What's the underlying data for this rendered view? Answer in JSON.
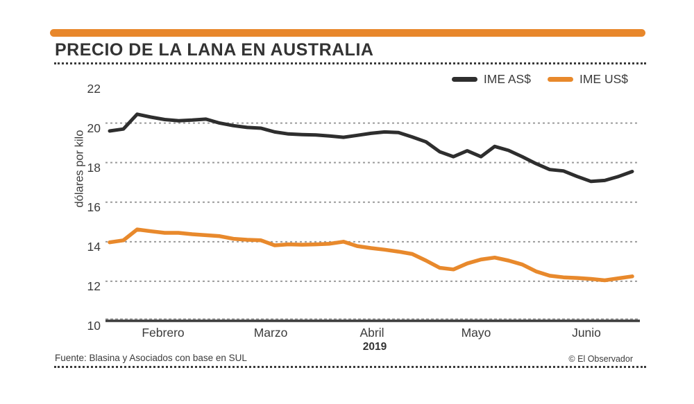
{
  "header": {
    "title": "PRECIO DE LA LANA EN AUSTRALIA"
  },
  "colors": {
    "accent": "#e8872b",
    "series_as": "#2e2e2e",
    "series_us": "#e8892c",
    "grid": "#9b9b9b",
    "axis": "#3a3a3a"
  },
  "chart_data": {
    "type": "line",
    "title": "PRECIO DE LA LANA EN AUSTRALIA",
    "ylabel": "dólares por kilo",
    "xlabel": "",
    "year_label": "2019",
    "x_month_labels": [
      "Febrero",
      "Marzo",
      "Abril",
      "Mayo",
      "Junio"
    ],
    "y_ticks": [
      22,
      20,
      18,
      16,
      14,
      12,
      10
    ],
    "ylim": [
      10,
      22
    ],
    "grid_values": [
      20,
      18,
      16,
      14,
      12
    ],
    "legend_position": "top-right",
    "series": [
      {
        "name": "IME AS$",
        "color": "#2e2e2e",
        "values": [
          19.6,
          19.7,
          20.45,
          20.3,
          20.18,
          20.12,
          20.15,
          20.2,
          20.0,
          19.87,
          19.78,
          19.74,
          19.55,
          19.45,
          19.42,
          19.4,
          19.35,
          19.28,
          19.38,
          19.48,
          19.55,
          19.52,
          19.3,
          19.05,
          18.55,
          18.3,
          18.6,
          18.3,
          18.82,
          18.62,
          18.3,
          17.95,
          17.65,
          17.58,
          17.3,
          17.05,
          17.1,
          17.3,
          17.55
        ]
      },
      {
        "name": "IME US$",
        "color": "#e8892c",
        "values": [
          13.97,
          14.07,
          14.62,
          14.53,
          14.45,
          14.45,
          14.38,
          14.33,
          14.28,
          14.15,
          14.1,
          14.07,
          13.82,
          13.87,
          13.85,
          13.87,
          13.9,
          14.0,
          13.78,
          13.68,
          13.6,
          13.5,
          13.38,
          13.05,
          12.68,
          12.6,
          12.9,
          13.1,
          13.2,
          13.05,
          12.85,
          12.5,
          12.28,
          12.2,
          12.17,
          12.12,
          12.05,
          12.15,
          12.25
        ]
      }
    ]
  },
  "footer": {
    "source": "Fuente: Blasina y Asociados con base en SUL",
    "credit": "© El Observador"
  }
}
